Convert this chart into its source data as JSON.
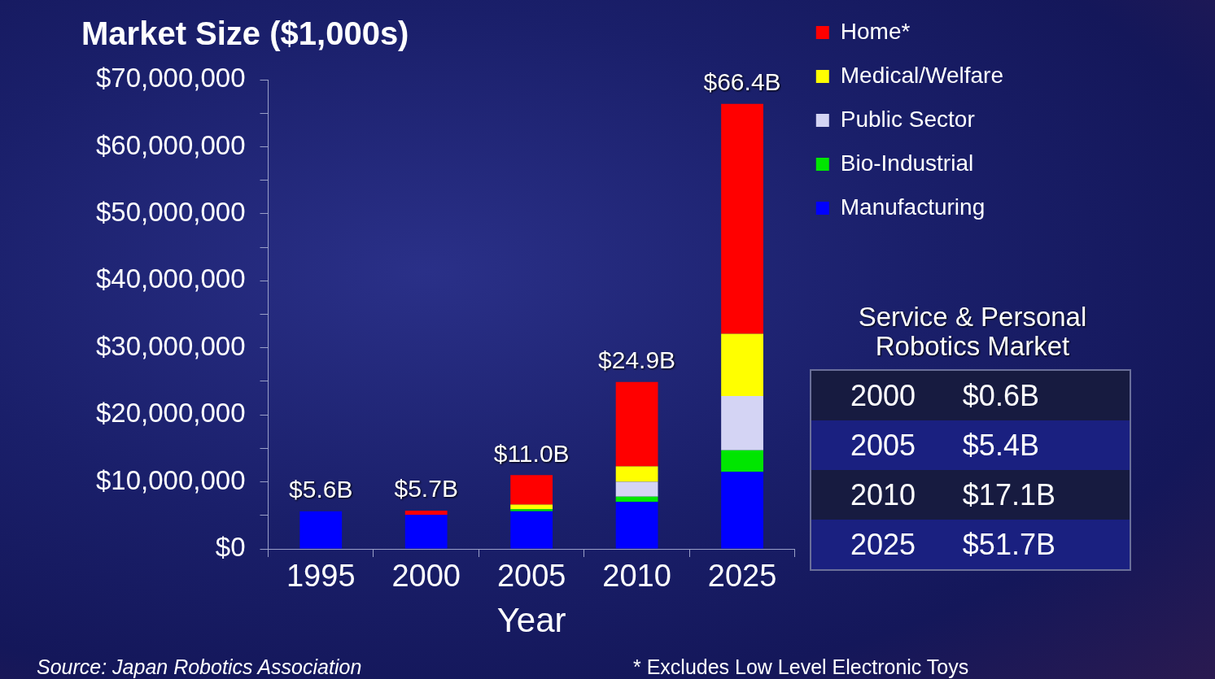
{
  "chart_data": {
    "type": "bar",
    "title": "Market Size ($1,000s)",
    "xlabel": "Year",
    "categories": [
      "1995",
      "2000",
      "2005",
      "2010",
      "2025"
    ],
    "stacked": true,
    "series": [
      {
        "name": "Manufacturing",
        "color": "#0000ff",
        "values": [
          5600000,
          5100000,
          5600000,
          7000000,
          11500000
        ]
      },
      {
        "name": "Bio-Industrial",
        "color": "#00e600",
        "values": [
          0,
          0,
          300000,
          800000,
          3200000
        ]
      },
      {
        "name": "Public Sector",
        "color": "#d4d4f4",
        "values": [
          0,
          0,
          0,
          2200000,
          8100000
        ]
      },
      {
        "name": "Medical/Welfare",
        "color": "#ffff00",
        "values": [
          0,
          0,
          700000,
          2300000,
          9300000
        ]
      },
      {
        "name": "Home*",
        "color": "#ff0000",
        "values": [
          0,
          600000,
          4400000,
          12600000,
          34300000
        ]
      }
    ],
    "ylim": [
      0,
      70000000
    ],
    "yticks": [
      {
        "value": 0,
        "label": "$0"
      },
      {
        "value": 5000000,
        "label": null
      },
      {
        "value": 10000000,
        "label": "$10,000,000"
      },
      {
        "value": 15000000,
        "label": null
      },
      {
        "value": 20000000,
        "label": "$20,000,000"
      },
      {
        "value": 25000000,
        "label": null
      },
      {
        "value": 30000000,
        "label": "$30,000,000"
      },
      {
        "value": 35000000,
        "label": null
      },
      {
        "value": 40000000,
        "label": "$40,000,000"
      },
      {
        "value": 45000000,
        "label": null
      },
      {
        "value": 50000000,
        "label": "$50,000,000"
      },
      {
        "value": 55000000,
        "label": null
      },
      {
        "value": 60000000,
        "label": "$60,000,000"
      },
      {
        "value": 65000000,
        "label": null
      },
      {
        "value": 70000000,
        "label": "$70,000,000"
      }
    ],
    "totals": [
      "$5.6B",
      "$5.7B",
      "$11.0B",
      "$24.9B",
      "$66.4B"
    ],
    "grid": false,
    "legend": "top right",
    "annotations": [
      "Service & Personal Robotics Market",
      "2000 $0.6B",
      "2005 $5.4B",
      "2010 $17.1B",
      "2025 $51.7B",
      "Source:  Japan Robotics Association",
      "* Excludes Low Level Electronic Toys"
    ]
  }
}
